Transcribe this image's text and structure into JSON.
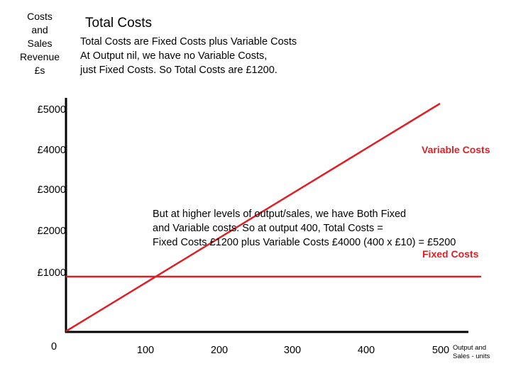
{
  "slide": {
    "title": "Total Costs",
    "intro_lines": [
      "Total Costs are Fixed Costs plus Variable Costs",
      "At Output nil, we have no Variable Costs,",
      "just Fixed Costs. So Total Costs are £1200."
    ],
    "annotation_lines": [
      "But at higher levels of output/sales, we have Both Fixed",
      "and Variable costs. So at output 400, Total Costs =",
      "Fixed Costs £1200 plus Variable Costs £4000 (400 x £10) = £5200"
    ]
  },
  "chart_data": {
    "type": "line",
    "ylabel": "Costs\nand\nSales\nRevenue\n£s",
    "xlabel": "Output and\nSales - units",
    "x_ticks": [
      "0",
      "100",
      "200",
      "300",
      "400",
      "500"
    ],
    "y_ticks": [
      "£1000",
      "£2000",
      "£3000",
      "£4000",
      "£5000"
    ],
    "xlim": [
      0,
      500
    ],
    "ylim": [
      0,
      5000
    ],
    "series": [
      {
        "name": "Variable Costs",
        "x": [
          0,
          500
        ],
        "y": [
          0,
          5000
        ],
        "color": "#dd1f26"
      },
      {
        "name": "Fixed Costs",
        "x": [
          0,
          555
        ],
        "y": [
          1200,
          1200
        ],
        "color": "#dd1f26"
      }
    ],
    "grid": false,
    "axis_color": "#000000"
  }
}
